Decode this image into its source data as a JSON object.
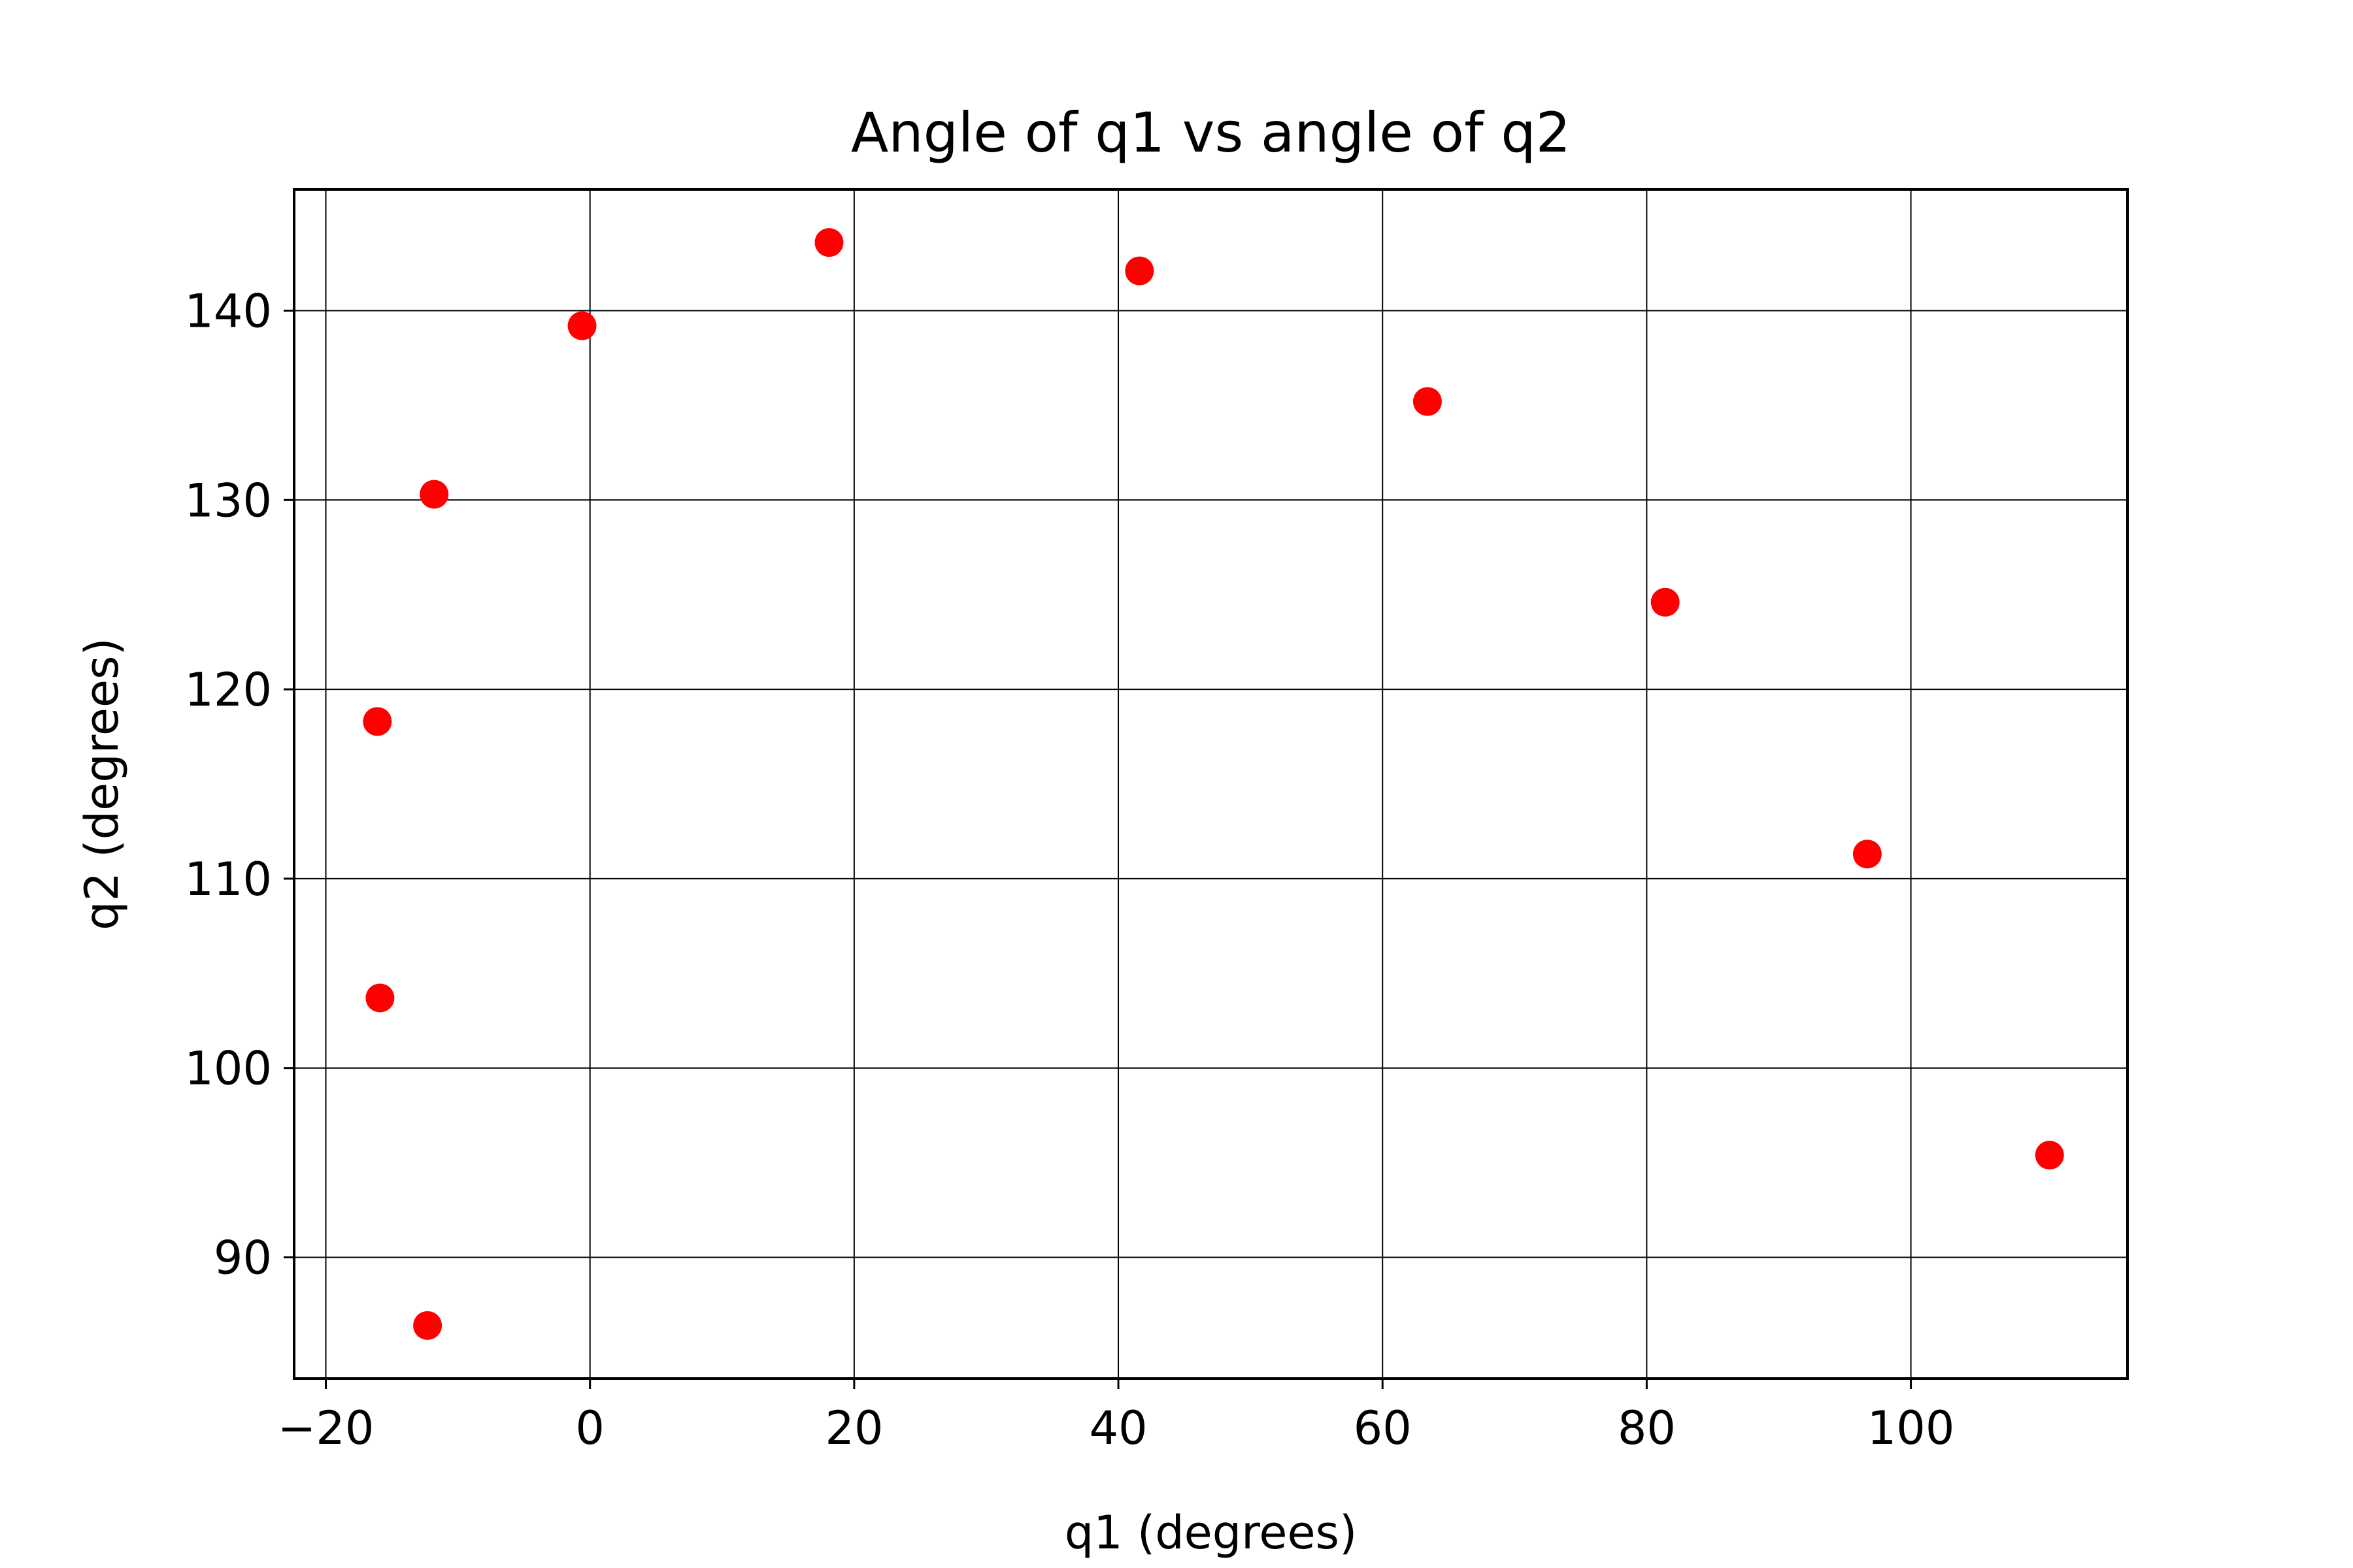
{
  "chart_data": {
    "type": "scatter",
    "title": "Angle of q1 vs angle of q2",
    "xlabel": "q1 (degrees)",
    "ylabel": "q2 (degrees)",
    "xlim": [
      -22.4,
      116.4
    ],
    "ylim": [
      83.6,
      146.4
    ],
    "xticks": [
      -20,
      0,
      20,
      40,
      60,
      80,
      100
    ],
    "xtick_labels": [
      "−20",
      "0",
      "20",
      "40",
      "60",
      "80",
      "100"
    ],
    "yticks": [
      90,
      100,
      110,
      120,
      130,
      140
    ],
    "ytick_labels": [
      "90",
      "100",
      "110",
      "120",
      "130",
      "140"
    ],
    "grid": true,
    "legend": false,
    "marker_color": "#ff0000",
    "grid_color": "#000000",
    "series": [
      {
        "x": [
          -12.3,
          -15.9,
          -16.1,
          -11.8,
          -0.6,
          18.1,
          41.6,
          63.4,
          81.4,
          96.7,
          110.5
        ],
        "y": [
          86.4,
          103.7,
          118.3,
          130.3,
          139.2,
          143.6,
          142.1,
          135.2,
          124.6,
          111.3,
          95.4
        ]
      }
    ]
  }
}
